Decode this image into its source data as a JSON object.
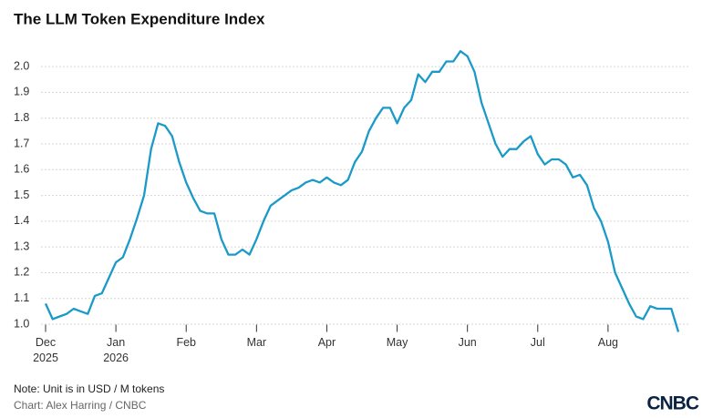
{
  "chart_data": {
    "type": "line",
    "title": "The LLM Token Expenditure Index",
    "categories": [
      "Dec",
      null,
      null,
      null,
      null,
      null,
      null,
      null,
      null,
      null,
      "Jan",
      null,
      null,
      null,
      null,
      null,
      null,
      null,
      null,
      null,
      "Feb",
      null,
      null,
      null,
      null,
      null,
      null,
      null,
      null,
      null,
      "Mar",
      null,
      null,
      null,
      null,
      null,
      null,
      null,
      null,
      null,
      "Apr",
      null,
      null,
      null,
      null,
      null,
      null,
      null,
      null,
      null,
      "May",
      null,
      null,
      null,
      null,
      null,
      null,
      null,
      null,
      null,
      "Jun",
      null,
      null,
      null,
      null,
      null,
      null,
      null,
      null,
      null,
      "Jul",
      null,
      null,
      null,
      null,
      null,
      null,
      null,
      null,
      null,
      "Aug",
      null,
      null,
      null,
      null,
      null,
      null,
      null,
      null,
      null,
      null
    ],
    "year_labels": [
      "2025",
      "2026"
    ],
    "values": [
      1.08,
      1.02,
      1.03,
      1.04,
      1.06,
      1.05,
      1.04,
      1.11,
      1.12,
      1.18,
      1.24,
      1.26,
      1.33,
      1.41,
      1.5,
      1.68,
      1.78,
      1.77,
      1.73,
      1.63,
      1.55,
      1.49,
      1.44,
      1.43,
      1.43,
      1.33,
      1.27,
      1.27,
      1.29,
      1.27,
      1.33,
      1.4,
      1.46,
      1.48,
      1.5,
      1.52,
      1.53,
      1.55,
      1.56,
      1.55,
      1.57,
      1.55,
      1.54,
      1.56,
      1.63,
      1.67,
      1.75,
      1.8,
      1.84,
      1.84,
      1.78,
      1.84,
      1.87,
      1.97,
      1.94,
      1.98,
      1.98,
      2.02,
      2.02,
      2.06,
      2.04,
      1.98,
      1.86,
      1.78,
      1.7,
      1.65,
      1.68,
      1.68,
      1.71,
      1.73,
      1.66,
      1.62,
      1.64,
      1.64,
      1.62,
      1.57,
      1.58,
      1.54,
      1.45,
      1.4,
      1.32,
      1.2,
      1.14,
      1.08,
      1.03,
      1.02,
      1.07,
      1.06,
      1.06,
      1.06,
      0.97
    ],
    "color": "#1b9ac8",
    "ylim": [
      0.97,
      2.05
    ],
    "yticks": [
      {
        "value": 1.0,
        "label": "1.0"
      },
      1.1,
      1.2,
      1.3,
      1.4,
      1.5,
      1.6,
      1.7,
      1.8,
      1.9,
      {
        "value": 2.0,
        "label": "2.0"
      }
    ],
    "grid": true,
    "note": "Note: Unit is in USD / M tokens",
    "source": "Chart: Alex Harring / CNBC",
    "logo": "CNBC"
  }
}
